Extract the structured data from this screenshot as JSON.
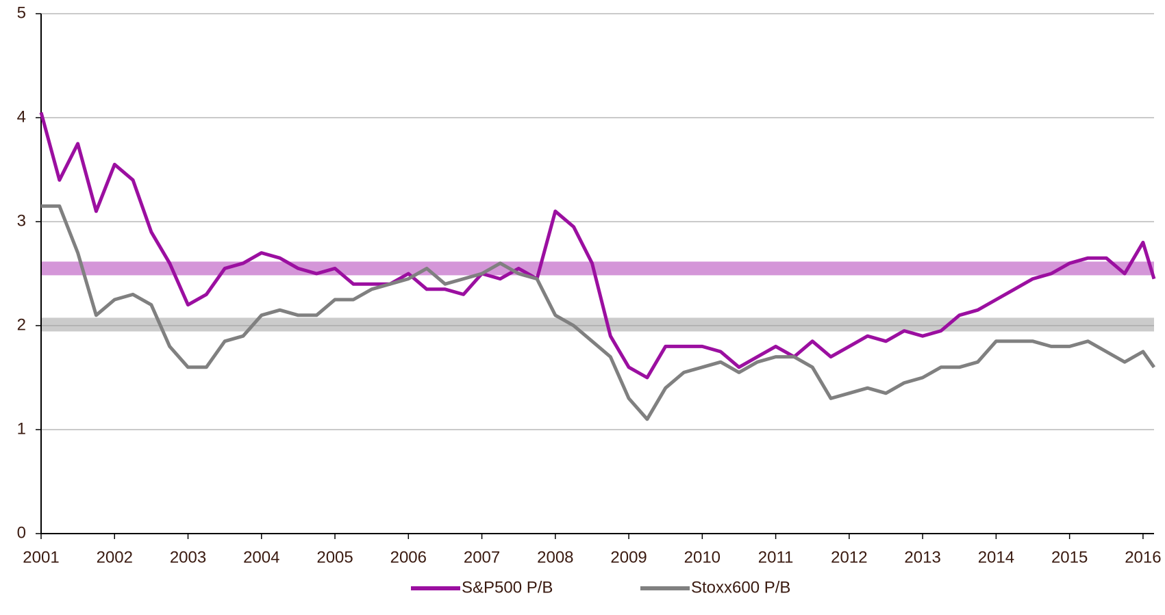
{
  "chart_data": {
    "type": "line",
    "x": [
      2001,
      2001.25,
      2001.5,
      2001.75,
      2002,
      2002.25,
      2002.5,
      2002.75,
      2003,
      2003.25,
      2003.5,
      2003.75,
      2004,
      2004.25,
      2004.5,
      2004.75,
      2005,
      2005.25,
      2005.5,
      2005.75,
      2006,
      2006.25,
      2006.5,
      2006.75,
      2007,
      2007.25,
      2007.5,
      2007.75,
      2008,
      2008.25,
      2008.5,
      2008.75,
      2009,
      2009.25,
      2009.5,
      2009.75,
      2010,
      2010.25,
      2010.5,
      2010.75,
      2011,
      2011.25,
      2011.5,
      2011.75,
      2012,
      2012.25,
      2012.5,
      2012.75,
      2013,
      2013.25,
      2013.5,
      2013.75,
      2014,
      2014.25,
      2014.5,
      2014.75,
      2015,
      2015.25,
      2015.5,
      2015.75,
      2016,
      2016.15
    ],
    "series": [
      {
        "name": "S&P500 P/B",
        "color": "#9b0fa0",
        "values": [
          4.05,
          3.4,
          3.75,
          3.1,
          3.55,
          3.4,
          2.9,
          2.6,
          2.2,
          2.3,
          2.55,
          2.6,
          2.7,
          2.65,
          2.55,
          2.5,
          2.55,
          2.4,
          2.4,
          2.4,
          2.5,
          2.35,
          2.35,
          2.3,
          2.5,
          2.45,
          2.55,
          2.45,
          3.1,
          2.95,
          2.6,
          1.9,
          1.6,
          1.5,
          1.8,
          1.8,
          1.8,
          1.75,
          1.6,
          1.7,
          1.8,
          1.7,
          1.85,
          1.7,
          1.8,
          1.9,
          1.85,
          1.95,
          1.9,
          1.95,
          2.1,
          2.15,
          2.25,
          2.35,
          2.45,
          2.5,
          2.6,
          2.65,
          2.65,
          2.5,
          2.8,
          2.45
        ]
      },
      {
        "name": "Stoxx600 P/B",
        "color": "#808080",
        "values": [
          3.15,
          3.15,
          2.7,
          2.1,
          2.25,
          2.3,
          2.2,
          1.8,
          1.6,
          1.6,
          1.85,
          1.9,
          2.1,
          2.15,
          2.1,
          2.1,
          2.25,
          2.25,
          2.35,
          2.4,
          2.45,
          2.55,
          2.4,
          2.45,
          2.5,
          2.6,
          2.5,
          2.45,
          2.1,
          2.0,
          1.85,
          1.7,
          1.3,
          1.1,
          1.4,
          1.55,
          1.6,
          1.65,
          1.55,
          1.65,
          1.7,
          1.7,
          1.6,
          1.3,
          1.35,
          1.4,
          1.35,
          1.45,
          1.5,
          1.6,
          1.6,
          1.65,
          1.85,
          1.85,
          1.85,
          1.8,
          1.8,
          1.85,
          1.75,
          1.65,
          1.75,
          1.6
        ]
      }
    ],
    "reference_lines": [
      {
        "value": 2.55,
        "color": "#b040b8"
      },
      {
        "value": 2.01,
        "color": "#a0a0a0"
      }
    ],
    "xlim": [
      2001,
      2016.15
    ],
    "xticks": [
      2001,
      2002,
      2003,
      2004,
      2005,
      2006,
      2007,
      2008,
      2009,
      2010,
      2011,
      2012,
      2013,
      2014,
      2015,
      2016
    ],
    "ylim": [
      0,
      5
    ],
    "yticks": [
      0,
      1,
      2,
      3,
      4,
      5
    ],
    "grid": true,
    "legend": "bottom"
  }
}
